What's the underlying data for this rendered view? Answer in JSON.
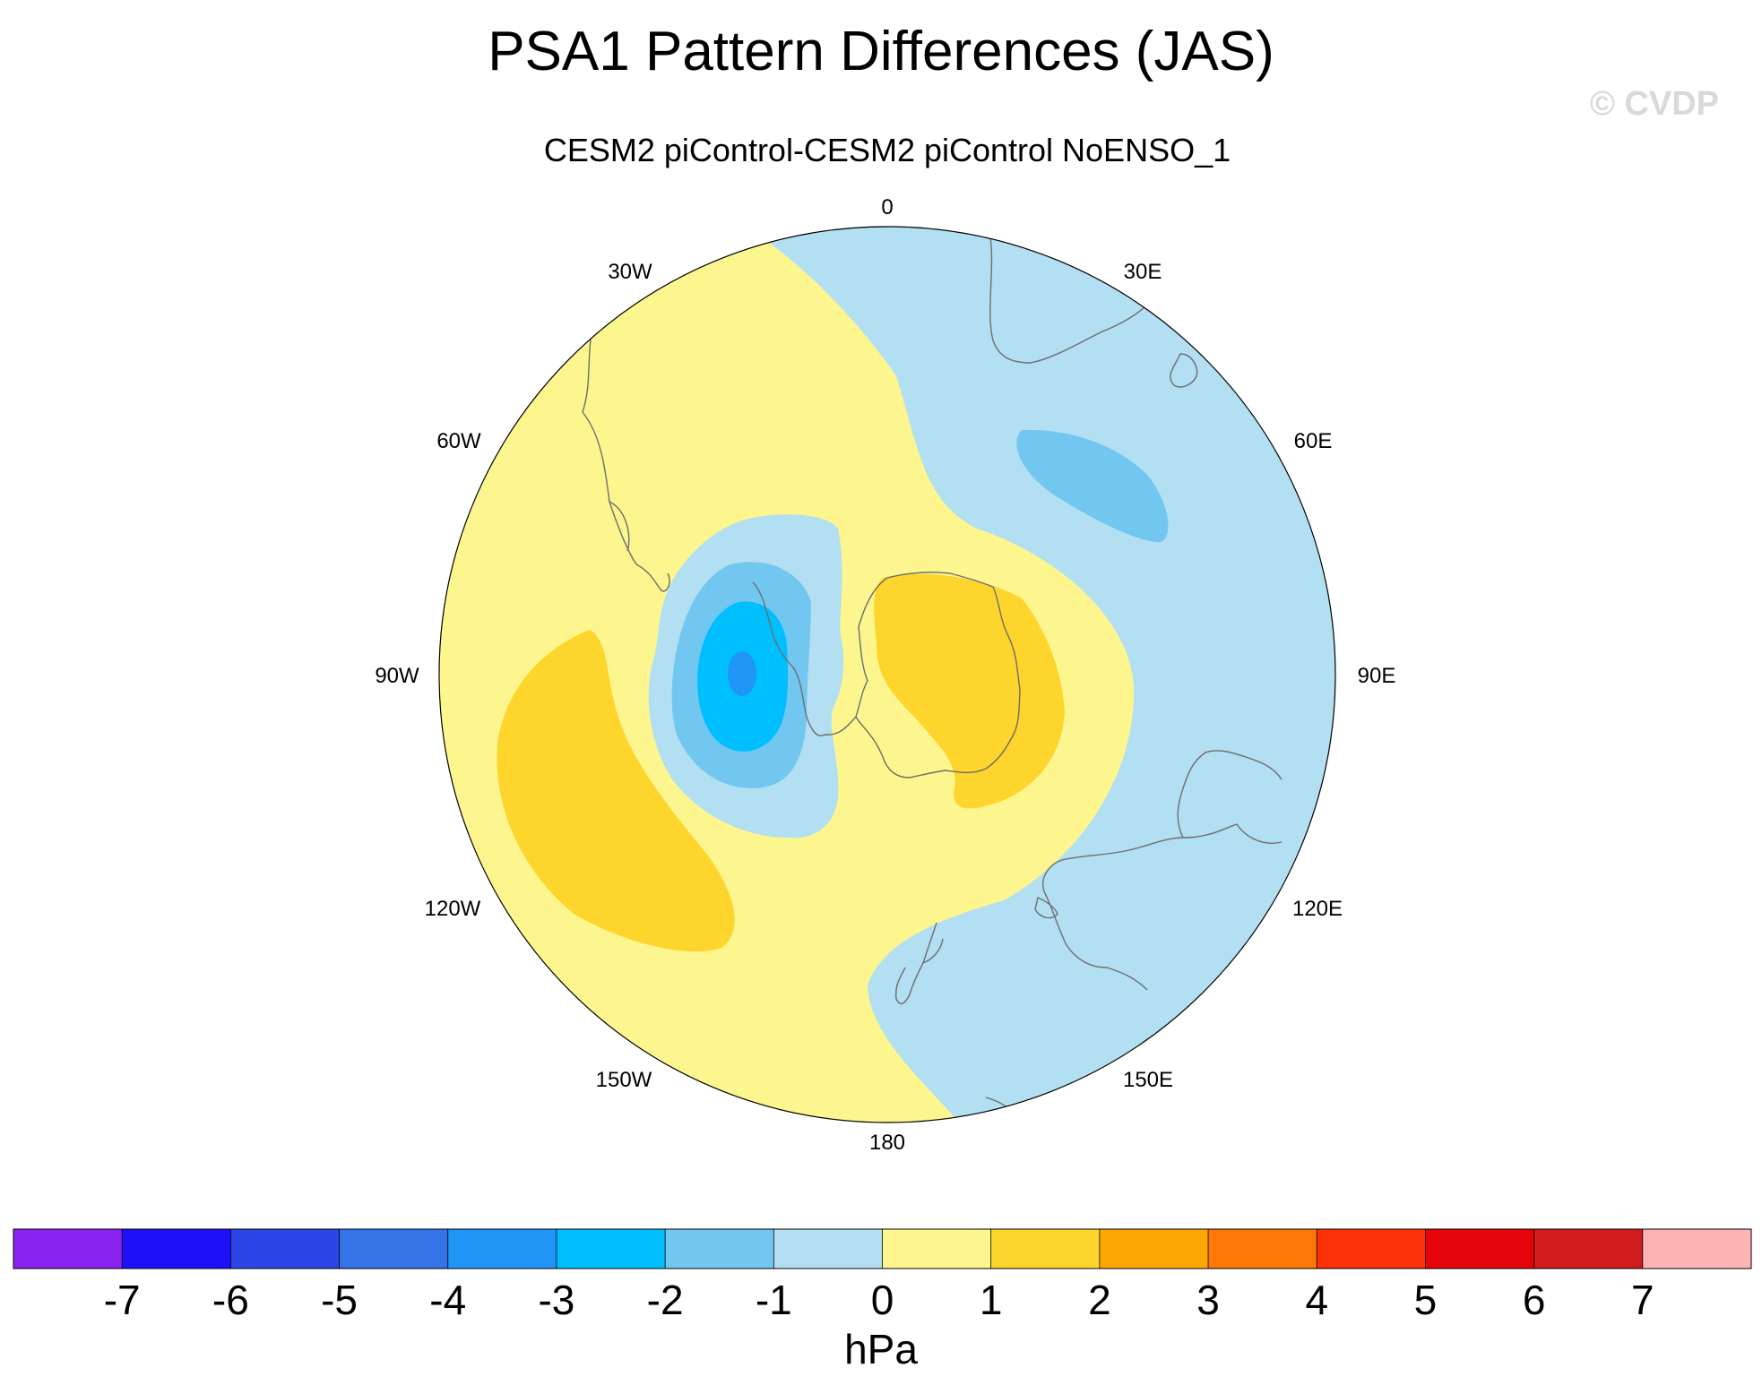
{
  "title": "PSA1 Pattern Differences (JAS)",
  "subtitle": "CESM2 piControl-CESM2 piControl NoENSO_1",
  "watermark": "© CVDP",
  "longitude_labels": [
    "0",
    "30E",
    "60E",
    "90E",
    "120E",
    "150E",
    "180",
    "150W",
    "120W",
    "90W",
    "60W",
    "30W"
  ],
  "colorbar": {
    "unit_label": "hPa",
    "tick_labels": [
      "-7",
      "-6",
      "-5",
      "-4",
      "-3",
      "-2",
      "-1",
      "0",
      "1",
      "2",
      "3",
      "4",
      "5",
      "6",
      "7"
    ],
    "colors": [
      "#8a22f0",
      "#1e10f6",
      "#2c45e6",
      "#3474e6",
      "#1f96f6",
      "#00bfff",
      "#72c7f1",
      "#b3dff2",
      "#fdf68e",
      "#fdd52c",
      "#fda704",
      "#fd7806",
      "#fc3108",
      "#e6050a",
      "#d01c1f",
      "#fbb3b3"
    ]
  },
  "colors": {
    "neg1": "#b3dff2",
    "neg2": "#72c7f1",
    "neg3": "#00bfff",
    "neg4": "#1f96f6",
    "pos1": "#fdf68e",
    "pos2": "#fdd52c",
    "coast": "#6e6e6e",
    "watermark": "#d9d9d9"
  }
}
